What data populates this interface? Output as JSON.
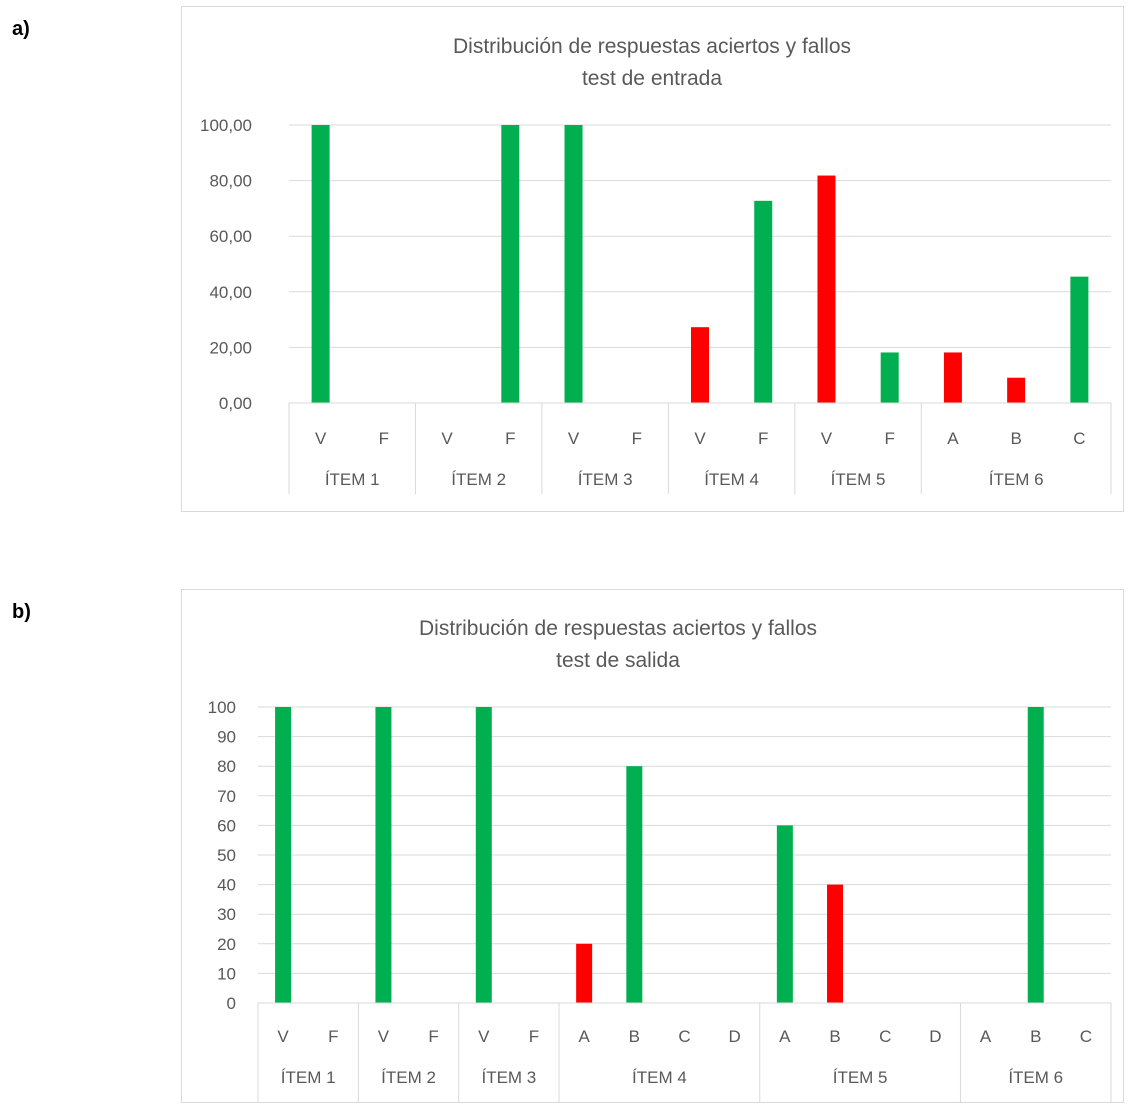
{
  "panels": [
    {
      "label": "a)"
    },
    {
      "label": "b)"
    }
  ],
  "colors": {
    "correct": "#00b050",
    "wrong": "#ff0000",
    "grid": "#d9d9d9",
    "axis": "#d9d9d9",
    "text": "#595959"
  },
  "chart_data": [
    {
      "type": "bar",
      "title": [
        "Distribución de respuestas aciertos y fallos",
        "test de entrada"
      ],
      "ylim": [
        0,
        100
      ],
      "yticks": [
        0,
        20,
        40,
        60,
        80,
        100
      ],
      "ytick_labels": [
        "0,00",
        "20,00",
        "40,00",
        "60,00",
        "80,00",
        "100,00"
      ],
      "grid": true,
      "legend": "none",
      "groups": [
        {
          "name": "ÍTEM 1",
          "categories": [
            "V",
            "F"
          ]
        },
        {
          "name": "ÍTEM 2",
          "categories": [
            "V",
            "F"
          ]
        },
        {
          "name": "ÍTEM 3",
          "categories": [
            "V",
            "F"
          ]
        },
        {
          "name": "ÍTEM 4",
          "categories": [
            "V",
            "F"
          ]
        },
        {
          "name": "ÍTEM 5",
          "categories": [
            "V",
            "F"
          ]
        },
        {
          "name": "ÍTEM 6",
          "categories": [
            "A",
            "B",
            "C"
          ]
        }
      ],
      "values": [
        100,
        0,
        0,
        100,
        100,
        0,
        27.27,
        72.73,
        81.82,
        18.18,
        18.18,
        9.09,
        45.45
      ],
      "bar_colors": [
        "correct",
        "correct",
        "correct",
        "correct",
        "correct",
        "correct",
        "wrong",
        "correct",
        "wrong",
        "correct",
        "wrong",
        "wrong",
        "correct"
      ]
    },
    {
      "type": "bar",
      "title": [
        "Distribución de respuestas aciertos y fallos",
        "test de salida"
      ],
      "ylim": [
        0,
        100
      ],
      "yticks": [
        0,
        10,
        20,
        30,
        40,
        50,
        60,
        70,
        80,
        90,
        100
      ],
      "ytick_labels": [
        "0",
        "10",
        "20",
        "30",
        "40",
        "50",
        "60",
        "70",
        "80",
        "90",
        "100"
      ],
      "grid": true,
      "legend": "none",
      "groups": [
        {
          "name": "ÍTEM 1",
          "categories": [
            "V",
            "F"
          ]
        },
        {
          "name": "ÍTEM 2",
          "categories": [
            "V",
            "F"
          ]
        },
        {
          "name": "ÍTEM 3",
          "categories": [
            "V",
            "F"
          ]
        },
        {
          "name": "ÍTEM 4",
          "categories": [
            "A",
            "B",
            "C",
            "D"
          ]
        },
        {
          "name": "ÍTEM 5",
          "categories": [
            "A",
            "B",
            "C",
            "D"
          ]
        },
        {
          "name": "ÍTEM 6",
          "categories": [
            "A",
            "B",
            "C"
          ]
        }
      ],
      "values": [
        100,
        0,
        100,
        0,
        100,
        0,
        20,
        80,
        0,
        0,
        60,
        40,
        0,
        0,
        0,
        100,
        0
      ],
      "bar_colors": [
        "correct",
        "correct",
        "correct",
        "correct",
        "correct",
        "correct",
        "wrong",
        "correct",
        "correct",
        "correct",
        "correct",
        "wrong",
        "correct",
        "correct",
        "correct",
        "correct",
        "correct"
      ]
    }
  ]
}
